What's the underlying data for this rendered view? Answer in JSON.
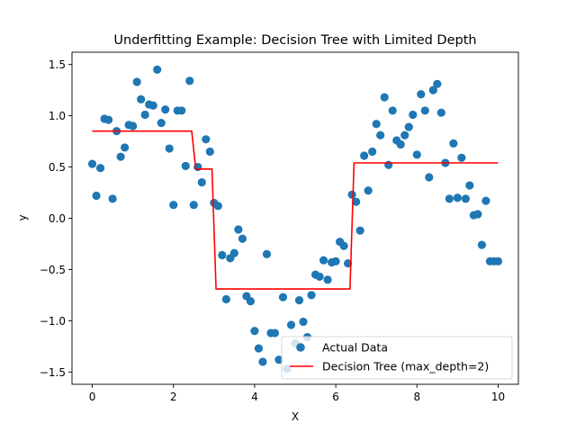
{
  "chart_data": {
    "type": "scatter",
    "title": "Underfitting Example: Decision Tree with Limited Depth",
    "xlabel": "X",
    "ylabel": "y",
    "xlim": [
      -0.5,
      10.5
    ],
    "ylim": [
      -1.62,
      1.62
    ],
    "xticks": [
      0,
      2,
      4,
      6,
      8,
      10
    ],
    "yticks": [
      -1.5,
      -1.0,
      -0.5,
      0.0,
      0.5,
      1.0,
      1.5
    ],
    "xtick_labels": [
      "0",
      "2",
      "4",
      "6",
      "8",
      "10"
    ],
    "ytick_labels": [
      "−1.5",
      "−1.0",
      "−0.5",
      "0.0",
      "0.5",
      "1.0",
      "1.5"
    ],
    "grid": false,
    "legend_position": "lower-right",
    "series": [
      {
        "name": "Actual Data",
        "kind": "scatter",
        "color": "#1f77b4",
        "x": [
          0.0,
          0.1,
          0.2,
          0.3,
          0.4,
          0.5,
          0.6,
          0.7,
          0.8,
          0.9,
          1.0,
          1.1,
          1.2,
          1.3,
          1.4,
          1.5,
          1.6,
          1.7,
          1.8,
          1.9,
          2.0,
          2.1,
          2.2,
          2.3,
          2.4,
          2.5,
          2.6,
          2.7,
          2.8,
          2.9,
          3.0,
          3.1,
          3.2,
          3.3,
          3.4,
          3.5,
          3.6,
          3.7,
          3.8,
          3.9,
          4.0,
          4.1,
          4.2,
          4.3,
          4.4,
          4.5,
          4.6,
          4.7,
          4.8,
          4.9,
          5.0,
          5.1,
          5.2,
          5.3,
          5.4,
          5.5,
          5.6,
          5.7,
          5.8,
          5.9,
          6.0,
          6.1,
          6.2,
          6.3,
          6.4,
          6.5,
          6.6,
          6.7,
          6.8,
          6.9,
          7.0,
          7.1,
          7.2,
          7.3,
          7.4,
          7.5,
          7.6,
          7.7,
          7.8,
          7.9,
          8.0,
          8.1,
          8.2,
          8.3,
          8.4,
          8.5,
          8.6,
          8.7,
          8.8,
          8.9,
          9.0,
          9.1,
          9.2,
          9.3,
          9.4,
          9.5,
          9.6,
          9.7,
          9.8,
          9.9,
          10.0
        ],
        "y": [
          0.53,
          0.22,
          0.49,
          0.97,
          0.96,
          0.19,
          0.85,
          0.6,
          0.69,
          0.91,
          0.9,
          1.33,
          1.16,
          1.01,
          1.11,
          1.1,
          1.45,
          0.93,
          1.06,
          0.68,
          0.13,
          1.05,
          1.05,
          0.51,
          1.34,
          0.13,
          0.5,
          0.35,
          0.77,
          0.65,
          0.15,
          0.12,
          -0.36,
          -0.79,
          -0.39,
          -0.34,
          -0.11,
          -0.2,
          -0.76,
          -0.81,
          -1.1,
          -1.27,
          -1.4,
          -0.35,
          -1.12,
          -1.12,
          -1.38,
          -0.77,
          -1.47,
          -1.04,
          -1.22,
          -0.8,
          -1.01,
          -1.16,
          -0.75,
          -0.55,
          -0.57,
          -0.41,
          -0.6,
          -0.43,
          -0.42,
          -0.23,
          -0.27,
          -0.44,
          0.23,
          0.16,
          -0.12,
          0.61,
          0.27,
          0.65,
          0.92,
          0.81,
          1.18,
          0.52,
          1.05,
          0.76,
          0.72,
          0.81,
          0.89,
          1.01,
          0.62,
          1.21,
          1.05,
          0.4,
          1.25,
          1.31,
          1.03,
          0.54,
          0.19,
          0.73,
          0.2,
          0.59,
          0.19,
          0.32,
          0.03,
          0.04,
          -0.26,
          0.17,
          -0.42,
          -0.42,
          -0.42
        ]
      },
      {
        "name": "Decision Tree (max_depth=2)",
        "kind": "line",
        "color": "#ff0000",
        "x": [
          0.0,
          2.45,
          2.45,
          2.55,
          2.95,
          3.05,
          6.35,
          6.45,
          10.0
        ],
        "y": [
          0.85,
          0.85,
          0.85,
          0.48,
          0.48,
          -0.69,
          -0.69,
          0.54,
          0.54
        ]
      }
    ]
  }
}
